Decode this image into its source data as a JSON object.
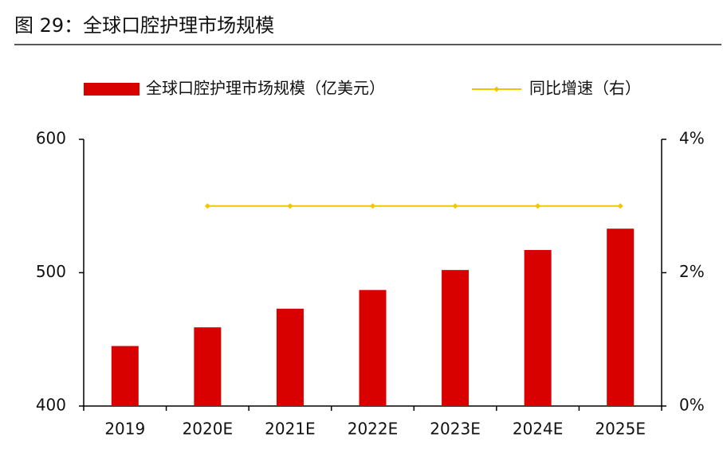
{
  "chart_data": {
    "type": "bar-line",
    "title": "图 29：全球口腔护理市场规模",
    "categories": [
      "2019",
      "2020E",
      "2021E",
      "2022E",
      "2023E",
      "2024E",
      "2025E"
    ],
    "series": [
      {
        "name": "全球口腔护理市场规模（亿美元）",
        "type": "bar",
        "color": "#d90000",
        "values": [
          445,
          459,
          473,
          487,
          502,
          517,
          533
        ]
      },
      {
        "name": "同比增速（右）",
        "type": "line",
        "color": "#f2c500",
        "axis": "y2",
        "values": [
          null,
          3.0,
          3.0,
          3.0,
          3.0,
          3.0,
          3.0
        ]
      }
    ],
    "ylim": [
      400,
      600
    ],
    "yticks": [
      400,
      500,
      600
    ],
    "y2lim": [
      0,
      4
    ],
    "y2ticks": [
      {
        "value": 0,
        "label": "0%"
      },
      {
        "value": 2,
        "label": "2%"
      },
      {
        "value": 4,
        "label": "4%"
      }
    ],
    "legend": "top"
  }
}
